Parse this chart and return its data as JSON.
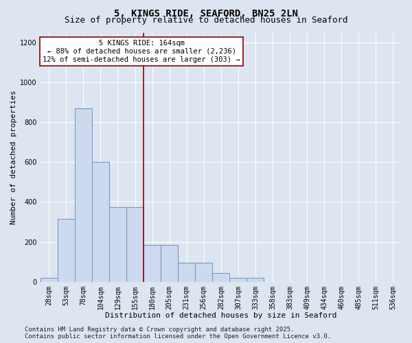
{
  "title_line1": "5, KINGS RIDE, SEAFORD, BN25 2LN",
  "title_line2": "Size of property relative to detached houses in Seaford",
  "xlabel": "Distribution of detached houses by size in Seaford",
  "ylabel": "Number of detached properties",
  "categories": [
    "28sqm",
    "53sqm",
    "78sqm",
    "104sqm",
    "129sqm",
    "155sqm",
    "180sqm",
    "205sqm",
    "231sqm",
    "256sqm",
    "282sqm",
    "307sqm",
    "333sqm",
    "358sqm",
    "383sqm",
    "409sqm",
    "434sqm",
    "460sqm",
    "485sqm",
    "511sqm",
    "536sqm"
  ],
  "values": [
    18,
    315,
    870,
    600,
    375,
    375,
    185,
    185,
    95,
    95,
    45,
    18,
    18,
    0,
    0,
    0,
    0,
    0,
    0,
    0,
    0
  ],
  "bar_color": "#ccd9ee",
  "bar_edge_color": "#7090c0",
  "vline_x": 5.5,
  "vline_color": "#8b0000",
  "annotation_text": "5 KINGS RIDE: 164sqm\n← 88% of detached houses are smaller (2,236)\n12% of semi-detached houses are larger (303) →",
  "annotation_box_facecolor": "#ffffff",
  "annotation_box_edgecolor": "#8b0000",
  "ylim": [
    0,
    1250
  ],
  "yticks": [
    0,
    200,
    400,
    600,
    800,
    1000,
    1200
  ],
  "footer_line1": "Contains HM Land Registry data © Crown copyright and database right 2025.",
  "footer_line2": "Contains public sector information licensed under the Open Government Licence v3.0.",
  "bg_color": "#dde5f0",
  "plot_bg_color": "#dde5f0",
  "grid_color": "#ffffff",
  "title_fontsize": 10,
  "subtitle_fontsize": 9,
  "axis_label_fontsize": 8,
  "tick_fontsize": 7,
  "annotation_fontsize": 7.5,
  "footer_fontsize": 6.5
}
